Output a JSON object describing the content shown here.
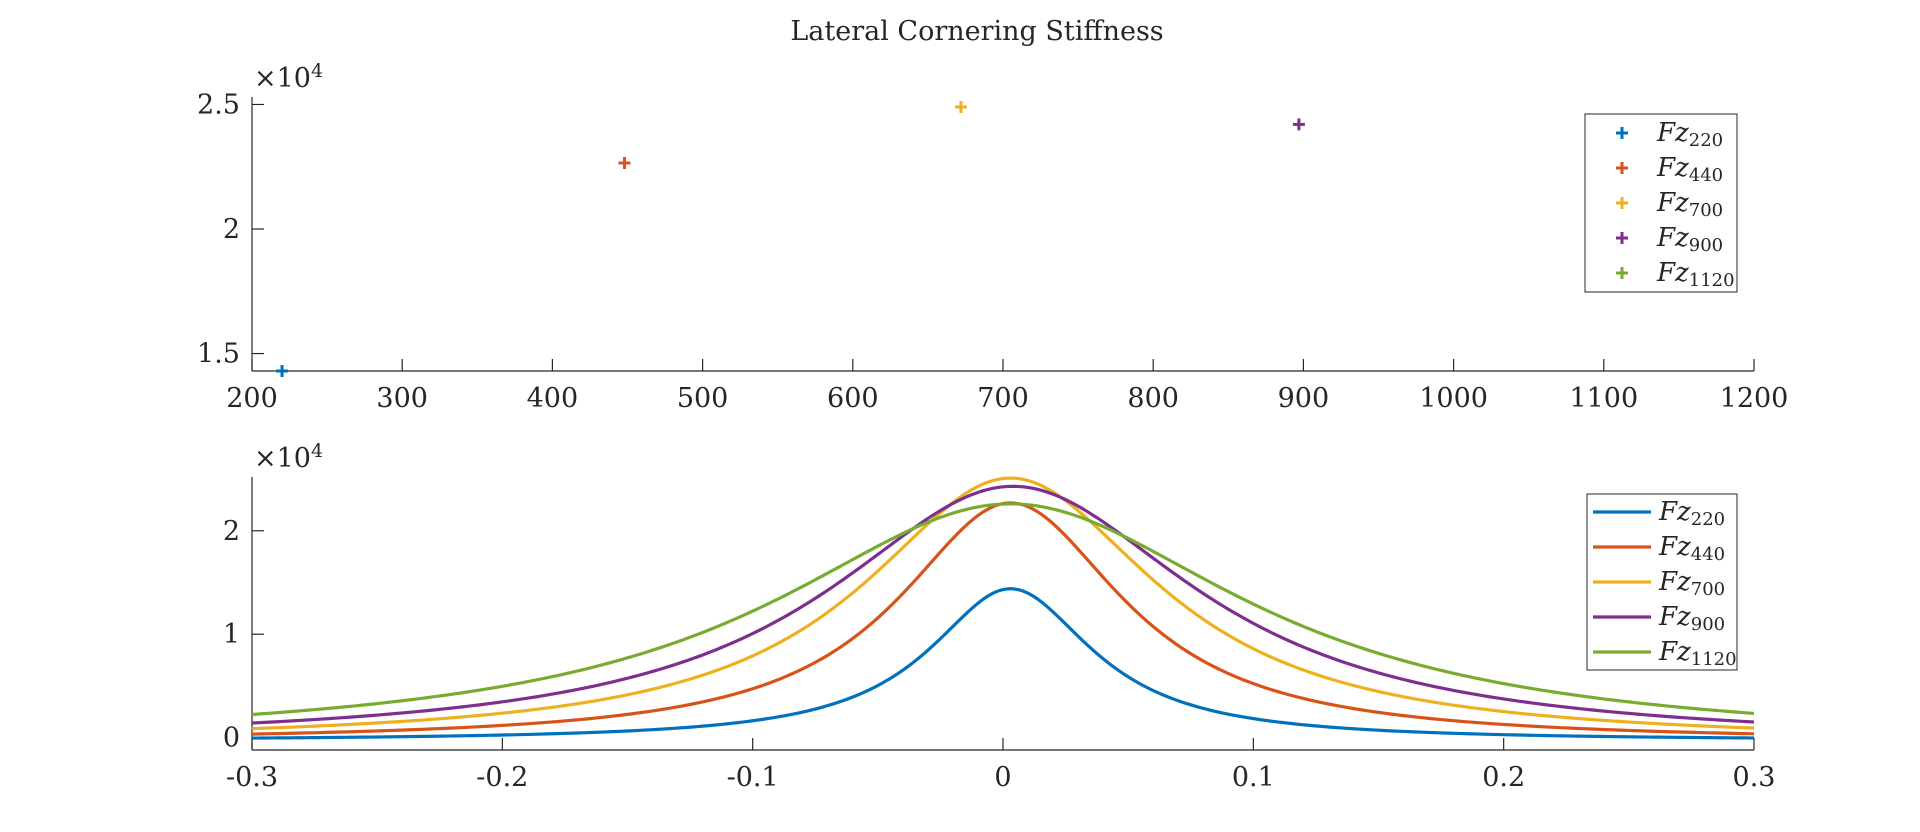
{
  "figure": {
    "title": "Lateral Cornering Stiffness"
  },
  "chart_data": [
    {
      "type": "scatter",
      "name": "top-plot",
      "title": "Lateral Cornering Stiffness",
      "xlabel": "",
      "ylabel": "",
      "xlim": [
        200,
        1200
      ],
      "ylim": [
        14300,
        25300
      ],
      "xticks": [
        200,
        300,
        400,
        500,
        600,
        700,
        800,
        900,
        1000,
        1100,
        1200
      ],
      "xtick_labels": [
        "200",
        "300",
        "400",
        "500",
        "600",
        "700",
        "800",
        "900",
        "1000",
        "1100",
        "1200"
      ],
      "yticks": [
        1.5,
        2,
        2.5
      ],
      "ytick_labels": [
        "1.5",
        "2",
        "2.5"
      ],
      "y_exponent_label": "×10",
      "y_exponent_power": "4",
      "y_scale": 10000,
      "marker": "plus",
      "grid": false,
      "legend_position": "top-right",
      "series": [
        {
          "label": "Fz",
          "sub": "220",
          "color": "#0072BD",
          "x": 220,
          "y": 14300
        },
        {
          "label": "Fz",
          "sub": "440",
          "color": "#D95319",
          "x": 448,
          "y": 22650
        },
        {
          "label": "Fz",
          "sub": "700",
          "color": "#EDB120",
          "x": 672,
          "y": 24900
        },
        {
          "label": "Fz",
          "sub": "900",
          "color": "#7E2F8E",
          "x": 897,
          "y": 24200
        },
        {
          "label": "Fz",
          "sub": "1120",
          "color": "#77AC30",
          "x": null,
          "y": null
        }
      ]
    },
    {
      "type": "line",
      "name": "bottom-plot",
      "title": "",
      "xlabel": "",
      "ylabel": "",
      "xlim": [
        -0.3,
        0.3
      ],
      "ylim": [
        -1200,
        25200
      ],
      "xticks": [
        -0.3,
        -0.2,
        -0.1,
        0,
        0.1,
        0.2,
        0.3
      ],
      "xtick_labels": [
        "-0.3",
        "-0.2",
        "-0.1",
        "0",
        "0.1",
        "0.2",
        "0.3"
      ],
      "yticks": [
        0,
        1,
        2
      ],
      "ytick_labels": [
        "0",
        "1",
        "2"
      ],
      "y_exponent_label": "×10",
      "y_exponent_power": "4",
      "y_scale": 10000,
      "grid": false,
      "legend_position": "top-right",
      "series": [
        {
          "label": "Fz",
          "sub": "220",
          "color": "#0072BD",
          "peak": 14400,
          "center": 0.003,
          "width": 0.04,
          "offset": -300
        },
        {
          "label": "Fz",
          "sub": "440",
          "color": "#D95319",
          "peak": 22700,
          "center": 0.003,
          "width": 0.055,
          "offset": -400
        },
        {
          "label": "Fz",
          "sub": "700",
          "color": "#EDB120",
          "peak": 25100,
          "center": 0.003,
          "width": 0.072,
          "offset": -500
        },
        {
          "label": "Fz",
          "sub": "900",
          "color": "#7E2F8E",
          "peak": 24300,
          "center": 0.004,
          "width": 0.09,
          "offset": -600
        },
        {
          "label": "Fz",
          "sub": "1120",
          "color": "#77AC30",
          "peak": 22600,
          "center": 0.003,
          "width": 0.115,
          "offset": -700
        }
      ]
    }
  ]
}
